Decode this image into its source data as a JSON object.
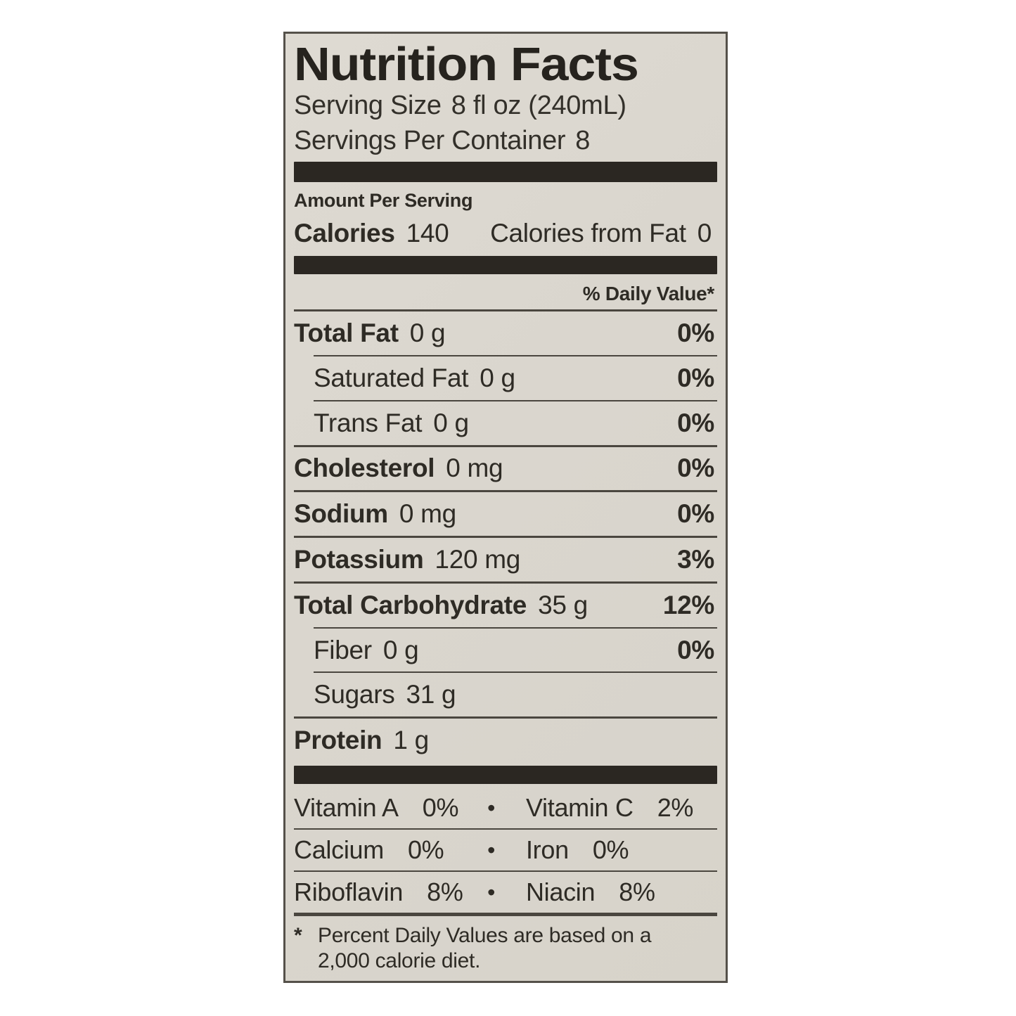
{
  "label": {
    "title": "Nutrition Facts",
    "serving_size_label": "Serving Size",
    "serving_size_value": "8 fl oz (240mL)",
    "servings_per_container_label": "Servings Per Container",
    "servings_per_container_value": "8",
    "amount_per_serving": "Amount Per Serving",
    "calories_label": "Calories",
    "calories_value": "140",
    "calories_from_fat_label": "Calories from Fat",
    "calories_from_fat_value": "0",
    "daily_value_header": "% Daily Value*",
    "nutrients": [
      {
        "name": "Total Fat",
        "amount": "0 g",
        "dv": "0%"
      },
      {
        "name": "Saturated Fat",
        "amount": "0 g",
        "dv": "0%"
      },
      {
        "name": "Trans Fat",
        "amount": "0 g",
        "dv": "0%"
      },
      {
        "name": "Cholesterol",
        "amount": "0 mg",
        "dv": "0%"
      },
      {
        "name": "Sodium",
        "amount": "0 mg",
        "dv": "0%"
      },
      {
        "name": "Potassium",
        "amount": "120 mg",
        "dv": "3%"
      },
      {
        "name": "Total Carbohydrate",
        "amount": "35 g",
        "dv": "12%"
      },
      {
        "name": "Fiber",
        "amount": "0 g",
        "dv": "0%"
      },
      {
        "name": "Sugars",
        "amount": "31 g",
        "dv": ""
      },
      {
        "name": "Protein",
        "amount": "1 g",
        "dv": ""
      }
    ],
    "micronutrients": [
      {
        "left_name": "Vitamin A",
        "left_value": "0%",
        "bullet": "•",
        "right_name": "Vitamin C",
        "right_value": "2%"
      },
      {
        "left_name": "Calcium",
        "left_value": "0%",
        "bullet": "•",
        "right_name": "Iron",
        "right_value": "0%"
      },
      {
        "left_name": "Riboflavin",
        "left_value": "8%",
        "bullet": "•",
        "right_name": "Niacin",
        "right_value": "8%"
      }
    ],
    "footnote_marker": "*",
    "footnote_text": "Percent Daily Values are based on a 2,000 calorie diet."
  },
  "colors": {
    "label_background": "#dad6ce",
    "text": "#2e2b25",
    "bar": "#2b2722",
    "border": "#55514a",
    "page_background": "#ffffff"
  }
}
